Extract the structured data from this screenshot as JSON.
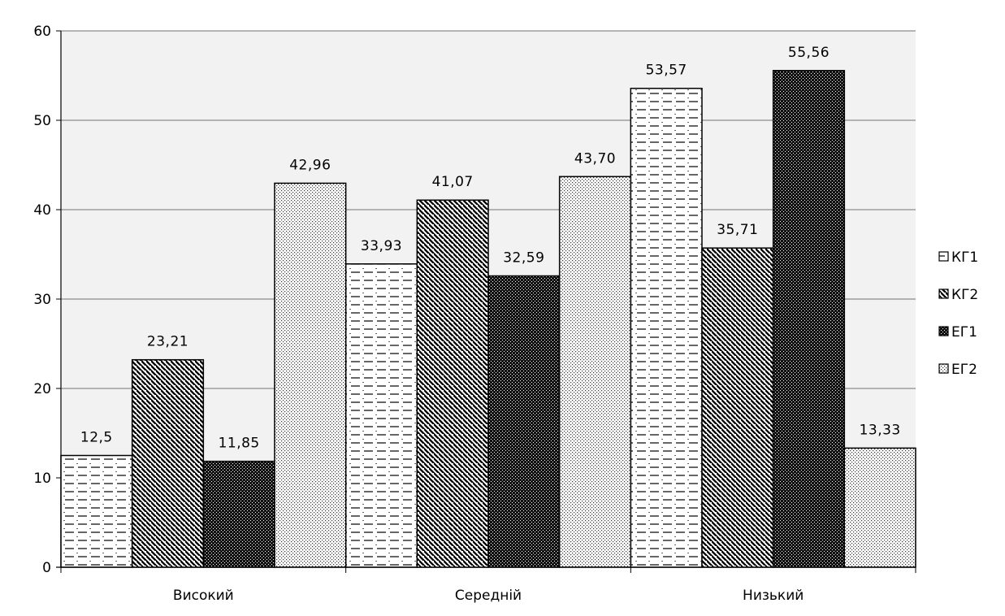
{
  "chart_data": {
    "type": "bar",
    "title": "",
    "xlabel": "",
    "ylabel": "",
    "categories": [
      "Високий",
      "Середній",
      "Низький"
    ],
    "ylim": [
      0,
      60
    ],
    "yticks": [
      0,
      10,
      20,
      30,
      40,
      50,
      60
    ],
    "grid": "horizontal",
    "legend_position": "right",
    "series": [
      {
        "name": "КГ1",
        "pattern": "dashes",
        "values": [
          12.5,
          33.93,
          53.57
        ],
        "labels": [
          "12,5",
          "33,93",
          "53,57"
        ]
      },
      {
        "name": "КГ2",
        "pattern": "diagonal-stripes",
        "values": [
          23.21,
          41.07,
          35.71
        ],
        "labels": [
          "23,21",
          "41,07",
          "35,71"
        ]
      },
      {
        "name": "ЕГ1",
        "pattern": "dense-dark-dots",
        "values": [
          11.85,
          32.59,
          55.56
        ],
        "labels": [
          "11,85",
          "32,59",
          "55,56"
        ]
      },
      {
        "name": "ЕГ2",
        "pattern": "light-dots",
        "values": [
          42.96,
          43.7,
          13.33
        ],
        "labels": [
          "42,96",
          "43,70",
          "13,33"
        ]
      }
    ],
    "colors": {
      "plot_background": "#f2f2f2",
      "gridline": "#8c8c8c",
      "bar_outline": "#000000"
    }
  }
}
